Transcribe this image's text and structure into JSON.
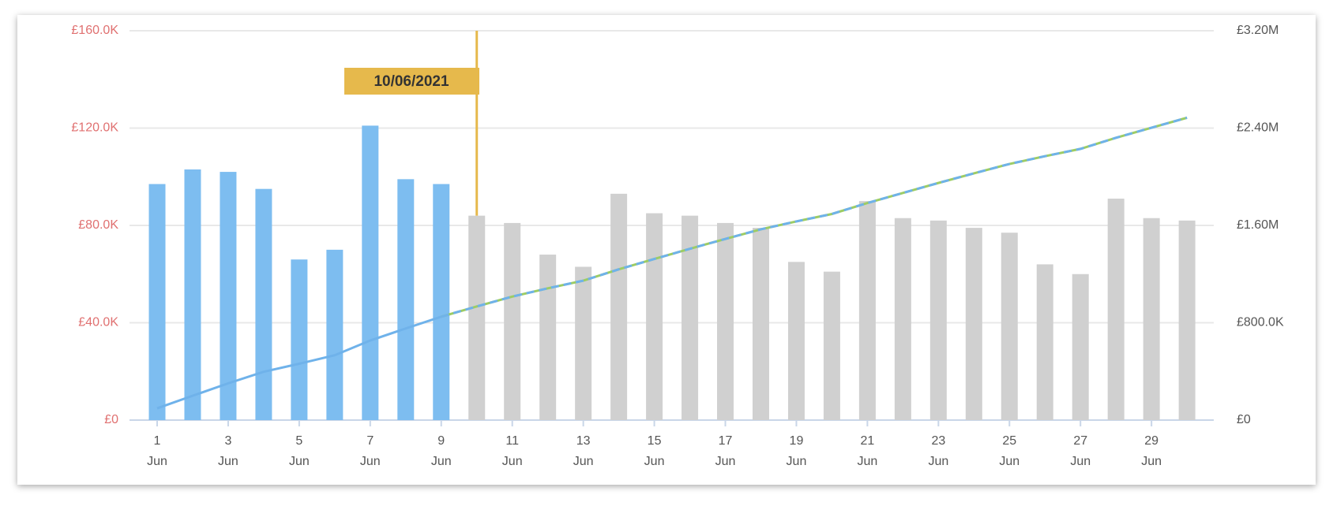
{
  "chart_data": {
    "type": "bar",
    "categories": [
      [
        "1",
        "Jun"
      ],
      null,
      [
        "3",
        "Jun"
      ],
      null,
      [
        "5",
        "Jun"
      ],
      null,
      [
        "7",
        "Jun"
      ],
      null,
      [
        "9",
        "Jun"
      ],
      null,
      [
        "11",
        "Jun"
      ],
      null,
      [
        "13",
        "Jun"
      ],
      null,
      [
        "15",
        "Jun"
      ],
      null,
      [
        "17",
        "Jun"
      ],
      null,
      [
        "19",
        "Jun"
      ],
      null,
      [
        "21",
        "Jun"
      ],
      null,
      [
        "23",
        "Jun"
      ],
      null,
      [
        "25",
        "Jun"
      ],
      null,
      [
        "27",
        "Jun"
      ],
      null,
      [
        "29",
        "Jun"
      ],
      null
    ],
    "series": [
      {
        "color": "#7dbdf0",
        "values": [
          97000,
          103000,
          102000,
          95000,
          66000,
          70000,
          121000,
          99000,
          97000,
          null,
          null,
          null,
          null,
          null,
          null,
          null,
          null,
          null,
          null,
          null,
          null,
          null,
          null,
          null,
          null,
          null,
          null,
          null,
          null,
          null
        ]
      },
      {
        "color": "#d0d0d0",
        "values": [
          null,
          null,
          null,
          null,
          null,
          null,
          null,
          null,
          null,
          84000,
          81000,
          68000,
          63000,
          93000,
          85000,
          84000,
          81000,
          79000,
          65000,
          61000,
          90000,
          83000,
          82000,
          79000,
          77000,
          64000,
          60000,
          91000,
          83000,
          82000
        ]
      },
      {
        "type": "line",
        "axis": "y2",
        "color": "#6fb2ea",
        "values": [
          97000,
          200000,
          302000,
          397000,
          463000,
          533000,
          654000,
          753000,
          850000,
          null,
          null,
          null,
          null,
          null,
          null,
          null,
          null,
          null,
          null,
          null,
          null,
          null,
          null,
          null,
          null,
          null,
          null,
          null,
          null,
          null
        ]
      },
      {
        "type": "line",
        "axis": "y2",
        "dashed": true,
        "color": "#6fb2ea",
        "color2": "#9ccc65",
        "values": [
          null,
          null,
          null,
          null,
          null,
          null,
          null,
          null,
          850000,
          934000,
          1015000,
          1083000,
          1146000,
          1239000,
          1324000,
          1408000,
          1489000,
          1568000,
          1633000,
          1694000,
          1784000,
          1867000,
          1949000,
          2028000,
          2105000,
          2169000,
          2229000,
          2320000,
          2403000,
          2485000
        ]
      }
    ],
    "ylim": [
      0,
      160000
    ],
    "yticks": [
      {
        "value": 0,
        "label": "£0"
      },
      {
        "value": 40000,
        "label": "£40.0K"
      },
      {
        "value": 80000,
        "label": "£80.0K"
      },
      {
        "value": 120000,
        "label": "£120.0K"
      },
      {
        "value": 160000,
        "label": "£160.0K"
      }
    ],
    "y2lim": [
      0,
      3200000
    ],
    "y2ticks": [
      {
        "value": 0,
        "label": "£0"
      },
      {
        "value": 800000,
        "label": "£800.0K"
      },
      {
        "value": 1600000,
        "label": "£1.60M"
      },
      {
        "value": 2400000,
        "label": "£2.40M"
      },
      {
        "value": 3200000,
        "label": "£3.20M"
      }
    ],
    "grid": true,
    "marker": {
      "index": 9,
      "label": "10/06/2021",
      "color": "#e6b94c"
    }
  }
}
